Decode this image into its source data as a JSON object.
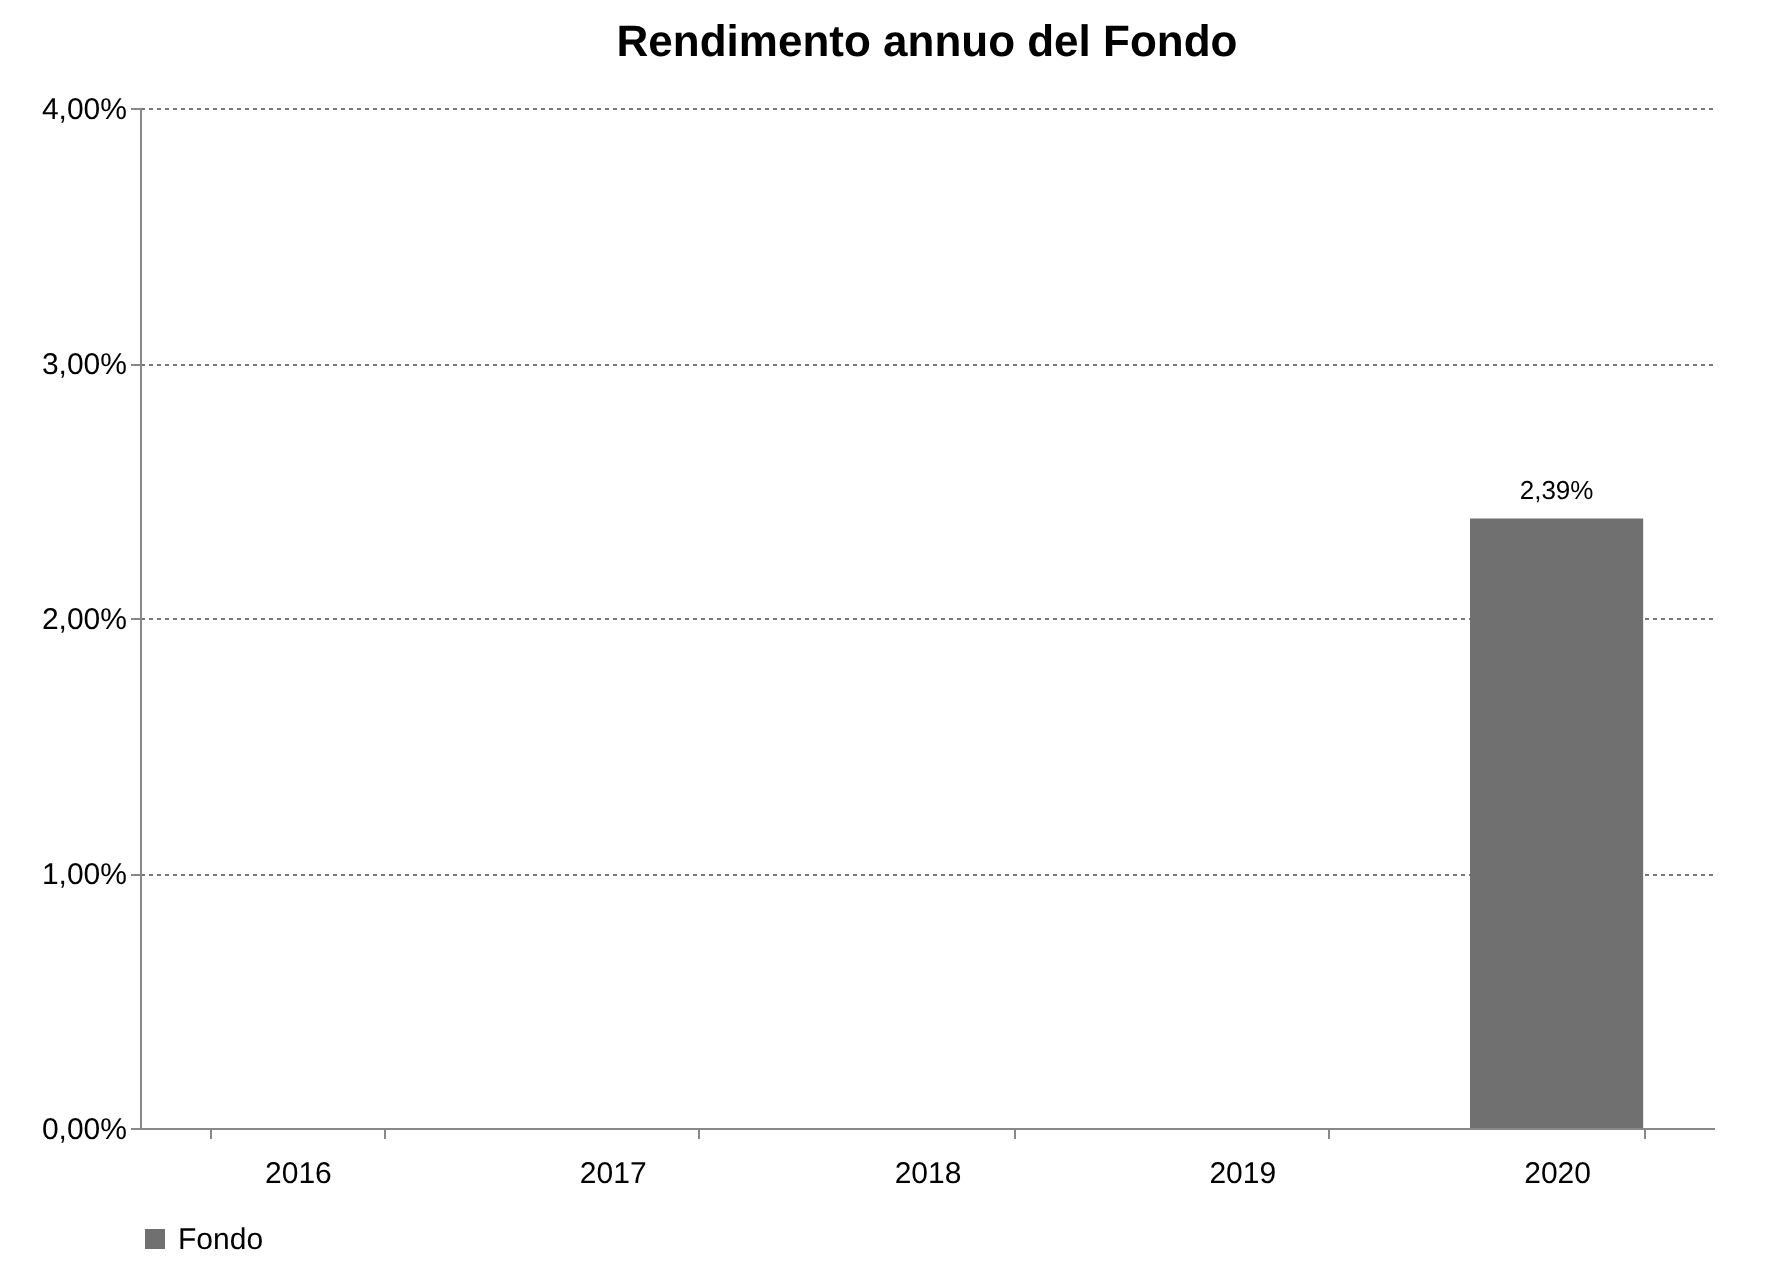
{
  "chart_data": {
    "type": "bar",
    "title": "Rendimento annuo del Fondo",
    "categories": [
      "2016",
      "2017",
      "2018",
      "2019",
      "2020"
    ],
    "series": [
      {
        "name": "Fondo",
        "color": "#707070",
        "values": [
          null,
          null,
          null,
          null,
          2.39
        ],
        "value_labels": [
          null,
          null,
          null,
          null,
          "2,39%"
        ]
      }
    ],
    "ylim": [
      0,
      4
    ],
    "yticks": [
      {
        "value": 0,
        "label": "0,00%"
      },
      {
        "value": 1,
        "label": "1,00%"
      },
      {
        "value": 2,
        "label": "2,00%"
      },
      {
        "value": 3,
        "label": "3,00%"
      },
      {
        "value": 4,
        "label": "4,00%"
      }
    ],
    "grid": "y",
    "legend": "bottom"
  }
}
